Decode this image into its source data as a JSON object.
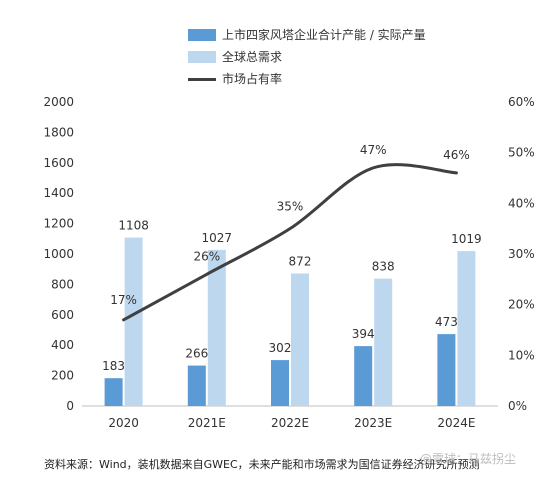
{
  "chart_data": {
    "type": "bar",
    "categories": [
      "2020",
      "2021E",
      "2022E",
      "2023E",
      "2024E"
    ],
    "series": [
      {
        "name": "上市四家风塔企业合计产能 / 实际产量",
        "kind": "bar",
        "axis": "left",
        "color": "#5b9bd5",
        "values": [
          183,
          266,
          302,
          394,
          473
        ]
      },
      {
        "name": "全球总需求",
        "kind": "bar",
        "axis": "left",
        "color": "#bdd7ee",
        "values": [
          1108,
          1027,
          872,
          838,
          1019
        ]
      },
      {
        "name": "市场占有率",
        "kind": "line",
        "axis": "right",
        "color": "#404040",
        "values": [
          17,
          26,
          35,
          47,
          46
        ],
        "labels": [
          "17%",
          "26%",
          "35%",
          "47%",
          "46%"
        ]
      }
    ],
    "ylim_left": [
      0,
      2000
    ],
    "yticks_left": [
      "0",
      "200",
      "400",
      "600",
      "800",
      "1000",
      "1200",
      "1400",
      "1600",
      "1800",
      "2000"
    ],
    "ylim_right": [
      0,
      60
    ],
    "yticks_right": [
      "0%",
      "10%",
      "20%",
      "30%",
      "40%",
      "50%",
      "60%"
    ],
    "grid": false,
    "legend_placement": "top"
  },
  "source_text": "资料来源：Wind，装机数据来自GWEC，未来产能和市场需求为国信证券经济研究所预测",
  "watermark": "@雪球：马兹拐尘"
}
